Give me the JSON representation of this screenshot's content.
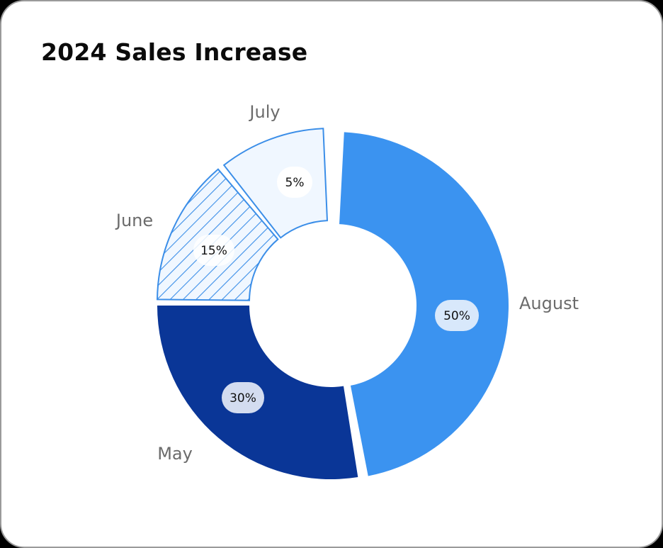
{
  "title": "2024 Sales Increase",
  "colors": {
    "august": "#3b93f0",
    "may": "#0a3697",
    "june_stroke": "#3b8ee8",
    "june_fill": "#f0f7ff",
    "july_fill": "#f0f7ff",
    "july_stroke": "#3b8ee8",
    "card_border": "#9a9a9a",
    "background": "#000000"
  },
  "chart_data": {
    "type": "pie",
    "variant": "donut",
    "title": "2024 Sales Increase",
    "categories": [
      "August",
      "May",
      "June",
      "July"
    ],
    "values": [
      50,
      30,
      15,
      5
    ],
    "value_labels": [
      "50%",
      "30%",
      "15%",
      "5%"
    ],
    "unit": "%",
    "legend": "none (direct labels outside slices)",
    "styles": {
      "August": "solid light blue, slightly exploded",
      "May": "solid dark navy",
      "June": "diagonal hatch, blue outline",
      "July": "pale blue fill, blue outline"
    }
  },
  "labels": {
    "july": "July",
    "june": "June",
    "august": "August",
    "may": "May",
    "july_pct": "5%",
    "june_pct": "15%",
    "august_pct": "50%",
    "may_pct": "30%"
  }
}
